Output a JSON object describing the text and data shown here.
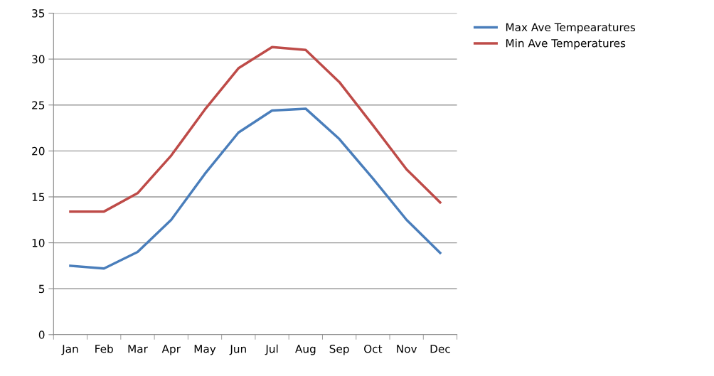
{
  "chart_data": {
    "type": "line",
    "categories": [
      "Jan",
      "Feb",
      "Mar",
      "Apr",
      "May",
      "Jun",
      "Jul",
      "Aug",
      "Sep",
      "Oct",
      "Nov",
      "Dec"
    ],
    "series": [
      {
        "name": "Max Ave Tempearatures",
        "color": "#4a7ebb",
        "values": [
          7.5,
          7.2,
          9.0,
          12.5,
          17.5,
          22.0,
          24.4,
          24.6,
          21.3,
          17.0,
          12.5,
          8.9
        ]
      },
      {
        "name": "Min Ave Temperatures",
        "color": "#be4b48",
        "values": [
          13.4,
          13.4,
          15.4,
          19.5,
          24.5,
          29.0,
          31.3,
          31.0,
          27.5,
          22.8,
          18.0,
          14.4
        ]
      }
    ],
    "ylim": [
      0,
      35
    ],
    "yticks": [
      0,
      5,
      10,
      15,
      20,
      25,
      30,
      35
    ],
    "grid": "y",
    "legend": "top right",
    "marker": "none",
    "line_style": "solid"
  }
}
